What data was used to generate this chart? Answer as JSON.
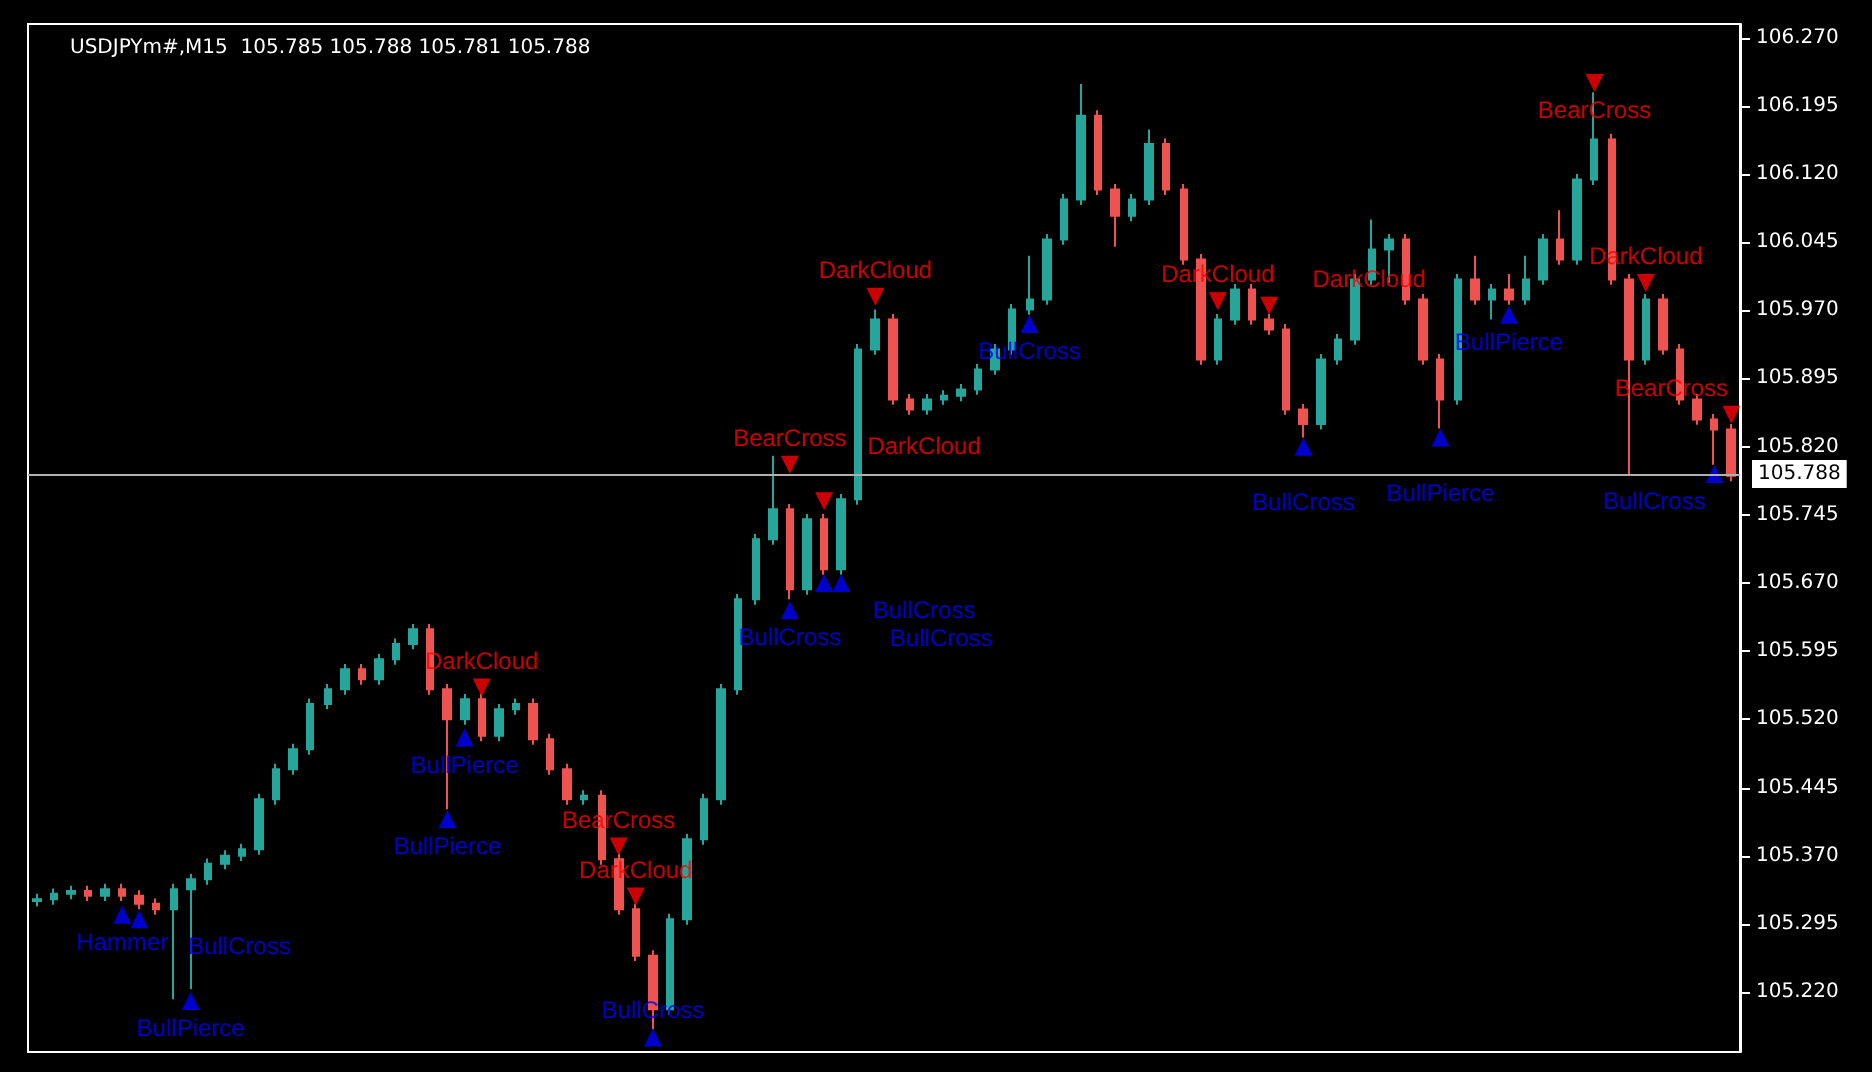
{
  "chart_data": {
    "type": "candlestick",
    "title": "USDJPYm#,M15  105.785 105.788 105.781 105.788",
    "categories": [
      null,
      null,
      null,
      null,
      null,
      null,
      null,
      null,
      null,
      null,
      null,
      null,
      null,
      null,
      null,
      null,
      null,
      null,
      null,
      null,
      null,
      null,
      null,
      null,
      null,
      null,
      null,
      null,
      null,
      null,
      null,
      null,
      null,
      null,
      null,
      null,
      null,
      null,
      null,
      null,
      null,
      null,
      null,
      null,
      null,
      null,
      null,
      null,
      null,
      null,
      null,
      null,
      null,
      null,
      null,
      null,
      null,
      null,
      null,
      null,
      null,
      null,
      null,
      null,
      null,
      null,
      null,
      null,
      null,
      null,
      null,
      null,
      null,
      null,
      null,
      null,
      null,
      null,
      null,
      null,
      null,
      null,
      null,
      null,
      null,
      null,
      null,
      null,
      null,
      null,
      null,
      null,
      null,
      null,
      null,
      null,
      null,
      null,
      null,
      null
    ],
    "ylim": [
      105.154,
      106.285
    ],
    "yticks": [
      {
        "value": 105.22,
        "label": "105.220"
      },
      {
        "value": 105.295,
        "label": "105.295"
      },
      {
        "value": 105.37,
        "label": "105.370"
      },
      {
        "value": 105.445,
        "label": "105.445"
      },
      {
        "value": 105.52,
        "label": "105.520"
      },
      {
        "value": 105.595,
        "label": "105.595"
      },
      {
        "value": 105.67,
        "label": "105.670"
      },
      {
        "value": 105.745,
        "label": "105.745"
      },
      {
        "value": 105.82,
        "label": "105.820"
      },
      {
        "value": 105.895,
        "label": "105.895"
      },
      {
        "value": 105.97,
        "label": "105.970"
      },
      {
        "value": 106.045,
        "label": "106.045"
      },
      {
        "value": 106.12,
        "label": "106.120"
      },
      {
        "value": 106.195,
        "label": "106.195"
      },
      {
        "value": 106.27,
        "label": "106.270"
      }
    ],
    "tick_labels": "y",
    "grid": false,
    "ref_lines": [
      {
        "axis": "y",
        "value": 105.788,
        "label": "105.788",
        "color": "#b0b0b0"
      }
    ],
    "series": [
      {
        "type": "candlestick",
        "ohlc": [
          [
            105.32,
            105.328,
            105.314,
            105.322
          ],
          [
            105.322,
            105.334,
            105.316,
            105.328
          ],
          [
            105.328,
            105.337,
            105.322,
            105.331
          ],
          [
            105.331,
            105.337,
            105.32,
            105.326
          ],
          [
            105.326,
            105.339,
            105.32,
            105.333
          ],
          [
            105.333,
            105.339,
            105.32,
            105.326
          ],
          [
            105.326,
            105.332,
            105.311,
            105.317
          ],
          [
            105.317,
            105.323,
            105.305,
            105.311
          ],
          [
            105.311,
            105.339,
            105.212,
            105.333
          ],
          [
            105.333,
            105.35,
            105.223,
            105.344
          ],
          [
            105.344,
            105.367,
            105.338,
            105.361
          ],
          [
            105.361,
            105.376,
            105.355,
            105.37
          ],
          [
            105.37,
            105.383,
            105.364,
            105.377
          ],
          [
            105.377,
            105.438,
            105.371,
            105.432
          ],
          [
            105.432,
            105.471,
            105.426,
            105.465
          ],
          [
            105.465,
            105.493,
            105.459,
            105.487
          ],
          [
            105.487,
            105.543,
            105.481,
            105.537
          ],
          [
            105.537,
            105.559,
            105.531,
            105.553
          ],
          [
            105.553,
            105.581,
            105.547,
            105.575
          ],
          [
            105.575,
            105.581,
            105.558,
            105.564
          ],
          [
            105.564,
            105.592,
            105.558,
            105.586
          ],
          [
            105.586,
            105.609,
            105.58,
            105.603
          ],
          [
            105.603,
            105.625,
            105.597,
            105.619
          ],
          [
            105.619,
            105.625,
            105.547,
            105.553
          ],
          [
            105.553,
            105.559,
            105.421,
            105.52
          ],
          [
            105.52,
            105.548,
            105.514,
            105.542
          ],
          [
            105.542,
            105.548,
            105.496,
            105.502
          ],
          [
            105.502,
            105.537,
            105.496,
            105.531
          ],
          [
            105.531,
            105.543,
            105.525,
            105.537
          ],
          [
            105.537,
            105.543,
            105.492,
            105.498
          ],
          [
            105.498,
            105.504,
            105.459,
            105.465
          ],
          [
            105.465,
            105.471,
            105.426,
            105.432
          ],
          [
            105.432,
            105.442,
            105.426,
            105.436
          ],
          [
            105.436,
            105.442,
            105.36,
            105.366
          ],
          [
            105.366,
            105.372,
            105.305,
            105.311
          ],
          [
            105.311,
            105.317,
            105.254,
            105.26
          ],
          [
            105.26,
            105.266,
            105.179,
            105.201
          ],
          [
            105.201,
            105.306,
            105.195,
            105.3
          ],
          [
            105.3,
            105.394,
            105.294,
            105.388
          ],
          [
            105.388,
            105.438,
            105.382,
            105.432
          ],
          [
            105.432,
            105.559,
            105.426,
            105.553
          ],
          [
            105.553,
            105.658,
            105.547,
            105.652
          ],
          [
            105.652,
            105.724,
            105.646,
            105.718
          ],
          [
            105.718,
            105.81,
            105.712,
            105.751
          ],
          [
            105.751,
            105.757,
            105.652,
            105.663
          ],
          [
            105.663,
            105.746,
            105.657,
            105.74
          ],
          [
            105.74,
            105.746,
            105.679,
            105.685
          ],
          [
            105.685,
            105.768,
            105.679,
            105.762
          ],
          [
            105.762,
            105.933,
            105.756,
            105.927
          ],
          [
            105.927,
            105.971,
            105.921,
            105.96
          ],
          [
            105.96,
            105.966,
            105.866,
            105.872
          ],
          [
            105.872,
            105.878,
            105.855,
            105.861
          ],
          [
            105.861,
            105.878,
            105.855,
            105.872
          ],
          [
            105.872,
            105.882,
            105.866,
            105.876
          ],
          [
            105.876,
            105.889,
            105.87,
            105.883
          ],
          [
            105.883,
            105.911,
            105.877,
            105.905
          ],
          [
            105.905,
            105.933,
            105.899,
            105.927
          ],
          [
            105.927,
            105.977,
            105.921,
            105.971
          ],
          [
            105.971,
            106.03,
            105.965,
            105.982
          ],
          [
            105.982,
            106.054,
            105.976,
            106.048
          ],
          [
            106.048,
            106.098,
            106.042,
            106.092
          ],
          [
            106.092,
            106.219,
            106.086,
            106.184
          ],
          [
            106.184,
            106.19,
            106.097,
            106.103
          ],
          [
            106.103,
            106.109,
            106.04,
            106.074
          ],
          [
            106.074,
            106.098,
            106.068,
            106.092
          ],
          [
            106.092,
            106.169,
            106.086,
            106.153
          ],
          [
            106.153,
            106.159,
            106.097,
            106.103
          ],
          [
            106.103,
            106.109,
            106.02,
            106.026
          ],
          [
            106.026,
            106.032,
            105.91,
            105.916
          ],
          [
            105.916,
            105.966,
            105.91,
            105.96
          ],
          [
            105.96,
            105.999,
            105.954,
            105.993
          ],
          [
            105.993,
            105.999,
            105.954,
            105.96
          ],
          [
            105.96,
            105.966,
            105.943,
            105.949
          ],
          [
            105.949,
            105.955,
            105.855,
            105.861
          ],
          [
            105.861,
            105.867,
            105.83,
            105.845
          ],
          [
            105.845,
            105.922,
            105.839,
            105.916
          ],
          [
            105.916,
            105.944,
            105.91,
            105.938
          ],
          [
            105.938,
            106.01,
            105.932,
            106.004
          ],
          [
            106.004,
            106.07,
            105.998,
            106.037
          ],
          [
            106.037,
            106.054,
            106.0,
            106.048
          ],
          [
            106.048,
            106.054,
            105.976,
            105.982
          ],
          [
            105.982,
            105.988,
            105.91,
            105.916
          ],
          [
            105.916,
            105.922,
            105.84,
            105.872
          ],
          [
            105.872,
            106.01,
            105.866,
            106.004
          ],
          [
            106.004,
            106.03,
            105.976,
            105.982
          ],
          [
            105.982,
            105.999,
            105.96,
            105.993
          ],
          [
            105.993,
            106.01,
            105.976,
            105.982
          ],
          [
            105.982,
            106.03,
            105.976,
            106.004
          ],
          [
            106.004,
            106.054,
            105.998,
            106.048
          ],
          [
            106.048,
            106.08,
            106.02,
            106.026
          ],
          [
            106.026,
            106.12,
            106.02,
            106.114
          ],
          [
            106.114,
            106.21,
            106.108,
            106.158
          ],
          [
            106.158,
            106.164,
            105.998,
            106.004
          ],
          [
            106.004,
            106.01,
            105.79,
            105.916
          ],
          [
            105.916,
            105.988,
            105.91,
            105.982
          ],
          [
            105.982,
            105.988,
            105.921,
            105.927
          ],
          [
            105.927,
            105.933,
            105.866,
            105.872
          ],
          [
            105.872,
            105.878,
            105.844,
            105.85
          ],
          [
            105.85,
            105.856,
            105.8,
            105.839
          ],
          [
            105.839,
            105.845,
            105.782,
            105.788
          ]
        ]
      },
      {
        "type": "scatter",
        "color": "#0000ff",
        "marker": "triangle",
        "values": [
          null,
          null,
          null,
          null,
          null,
          105.305,
          105.3,
          null,
          null,
          105.21,
          null,
          null,
          null,
          null,
          null,
          null,
          null,
          null,
          null,
          null,
          null,
          null,
          null,
          null,
          105.41,
          105.5,
          null,
          null,
          null,
          null,
          null,
          null,
          null,
          null,
          null,
          null,
          105.17,
          null,
          null,
          null,
          null,
          null,
          null,
          null,
          105.64,
          null,
          105.67,
          105.67,
          null,
          null,
          null,
          null,
          null,
          null,
          null,
          null,
          null,
          null,
          105.955,
          null,
          null,
          null,
          null,
          null,
          null,
          null,
          null,
          null,
          null,
          null,
          null,
          null,
          null,
          null,
          105.82,
          null,
          null,
          null,
          null,
          null,
          null,
          null,
          105.83,
          null,
          null,
          null,
          105.965,
          null,
          null,
          null,
          null,
          null,
          null,
          null,
          null,
          null,
          null,
          null,
          105.79,
          null
        ],
        "value_labels": [
          null,
          null,
          null,
          null,
          null,
          "Hammer",
          "BullCross",
          null,
          null,
          "BullPierce",
          null,
          null,
          null,
          null,
          null,
          null,
          null,
          null,
          null,
          null,
          null,
          null,
          null,
          null,
          "BullPierce",
          "BullPierce",
          null,
          null,
          null,
          null,
          null,
          null,
          null,
          null,
          null,
          null,
          "BullCross",
          null,
          null,
          null,
          null,
          null,
          null,
          null,
          "BullCross",
          null,
          "BullCross",
          "BullCross",
          null,
          null,
          null,
          null,
          null,
          null,
          null,
          null,
          null,
          null,
          "BullCross",
          null,
          null,
          null,
          null,
          null,
          null,
          null,
          null,
          null,
          null,
          null,
          null,
          null,
          null,
          null,
          "BullCross",
          null,
          null,
          null,
          null,
          null,
          null,
          null,
          "BullPierce",
          null,
          null,
          null,
          "BullPierce",
          null,
          null,
          null,
          null,
          null,
          null,
          null,
          null,
          null,
          null,
          null,
          "BullCross",
          null
        ]
      },
      {
        "type": "scatter",
        "color": "#ff0000",
        "marker": "triangle",
        "values": [
          null,
          null,
          null,
          null,
          null,
          null,
          null,
          null,
          null,
          null,
          null,
          null,
          null,
          null,
          null,
          null,
          null,
          null,
          null,
          null,
          null,
          null,
          null,
          null,
          null,
          null,
          105.555,
          null,
          null,
          null,
          null,
          null,
          null,
          null,
          105.38,
          105.325,
          null,
          null,
          null,
          null,
          null,
          null,
          null,
          null,
          105.8,
          null,
          105.76,
          null,
          null,
          105.985,
          null,
          null,
          null,
          null,
          null,
          null,
          null,
          null,
          null,
          null,
          null,
          null,
          null,
          null,
          null,
          null,
          null,
          null,
          null,
          105.98,
          null,
          null,
          105.975,
          null,
          null,
          null,
          null,
          null,
          null,
          null,
          null,
          null,
          null,
          null,
          null,
          null,
          null,
          null,
          null,
          null,
          null,
          106.22,
          null,
          null,
          106.0,
          null,
          null,
          null,
          null,
          105.855
        ],
        "value_labels": [
          null,
          null,
          null,
          null,
          null,
          null,
          null,
          null,
          null,
          null,
          null,
          null,
          null,
          null,
          null,
          null,
          null,
          null,
          null,
          null,
          null,
          null,
          null,
          null,
          null,
          null,
          "DarkCloud",
          null,
          null,
          null,
          null,
          null,
          null,
          null,
          "BearCross",
          "DarkCloud",
          null,
          null,
          null,
          null,
          null,
          null,
          null,
          null,
          "BearCross",
          null,
          "DarkCloud",
          null,
          null,
          "DarkCloud",
          null,
          null,
          null,
          null,
          null,
          null,
          null,
          null,
          null,
          null,
          null,
          null,
          null,
          null,
          null,
          null,
          null,
          null,
          null,
          "DarkCloud",
          null,
          null,
          "DarkCloud",
          null,
          null,
          null,
          null,
          null,
          null,
          null,
          null,
          null,
          null,
          null,
          null,
          null,
          null,
          null,
          null,
          null,
          null,
          "BearCross",
          null,
          null,
          "DarkCloud",
          null,
          null,
          null,
          null,
          "BearCross"
        ]
      }
    ]
  }
}
